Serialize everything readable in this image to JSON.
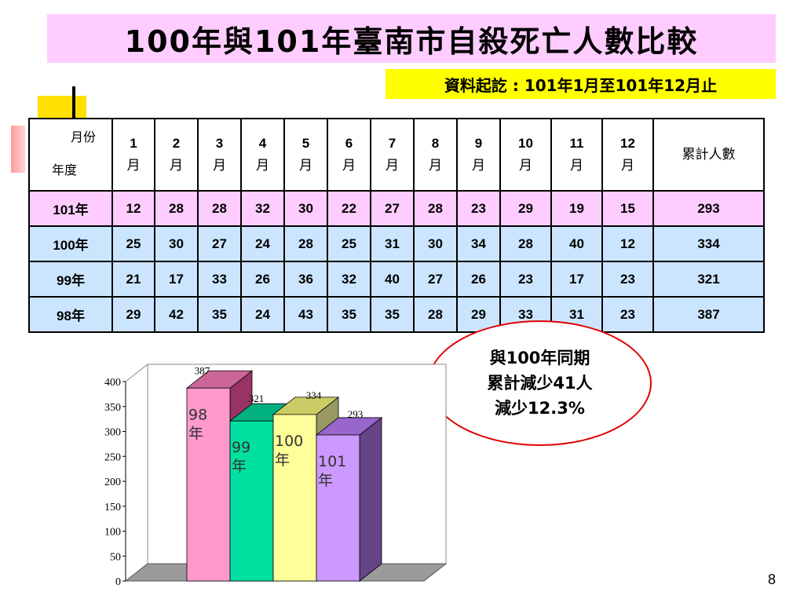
{
  "title": "100年與101年臺南市自殺死亡人數比較",
  "subtitle": "資料起訖 : 101年1月至101年12月止",
  "table": {
    "corner_top": "月份",
    "corner_bottom": "年度",
    "months": [
      {
        "num": "1",
        "unit": "月"
      },
      {
        "num": "2",
        "unit": "月"
      },
      {
        "num": "3",
        "unit": "月"
      },
      {
        "num": "4",
        "unit": "月"
      },
      {
        "num": "5",
        "unit": "月"
      },
      {
        "num": "6",
        "unit": "月"
      },
      {
        "num": "7",
        "unit": "月"
      },
      {
        "num": "8",
        "unit": "月"
      },
      {
        "num": "9",
        "unit": "月"
      },
      {
        "num": "10",
        "unit": "月"
      },
      {
        "num": "11",
        "unit": "月"
      },
      {
        "num": "12",
        "unit": "月"
      }
    ],
    "total_header": "累計人數",
    "rows": [
      {
        "year": "101年",
        "values": [
          "12",
          "28",
          "28",
          "32",
          "30",
          "22",
          "27",
          "28",
          "23",
          "29",
          "19",
          "15"
        ],
        "total": "293"
      },
      {
        "year": "100年",
        "values": [
          "25",
          "30",
          "27",
          "24",
          "28",
          "25",
          "31",
          "30",
          "34",
          "28",
          "40",
          "12"
        ],
        "total": "334"
      },
      {
        "year": "99年",
        "values": [
          "21",
          "17",
          "33",
          "26",
          "36",
          "32",
          "40",
          "27",
          "26",
          "23",
          "17",
          "23"
        ],
        "total": "321"
      },
      {
        "year": "98年",
        "values": [
          "29",
          "42",
          "35",
          "24",
          "43",
          "35",
          "35",
          "28",
          "29",
          "33",
          "31",
          "23"
        ],
        "total": "387"
      }
    ]
  },
  "callout": {
    "line1": "與100年同期",
    "line2": "累計減少41人",
    "line3": "減少12.3%"
  },
  "chart_data": {
    "type": "bar",
    "categories": [
      "98年",
      "99年",
      "100年",
      "101年"
    ],
    "category_labels": [
      [
        "98",
        "年"
      ],
      [
        "99",
        "年"
      ],
      [
        "100",
        "年"
      ],
      [
        "101",
        "年"
      ]
    ],
    "values": [
      387,
      321,
      334,
      293
    ],
    "ylim": [
      0,
      400
    ],
    "yticks": [
      0,
      50,
      100,
      150,
      200,
      250,
      300,
      350,
      400
    ],
    "colors": [
      "#ff99cc",
      "#00e0a0",
      "#ffff99",
      "#cc99ff"
    ],
    "side_colors": [
      "#993366",
      "#008060",
      "#999966",
      "#664488"
    ],
    "top_colors": [
      "#cc6699",
      "#00b080",
      "#cccc66",
      "#9966cc"
    ],
    "grid": false,
    "legend": "none"
  },
  "page_number": "8"
}
